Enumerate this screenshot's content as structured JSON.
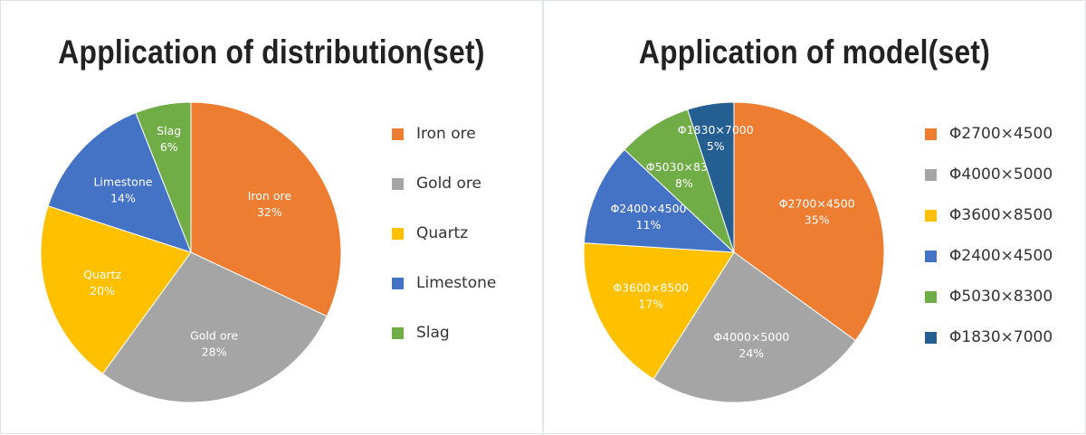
{
  "chart_data": [
    {
      "type": "pie",
      "title": "Application of distribution(set)",
      "categories": [
        "Iron ore",
        "Gold ore",
        "Quartz",
        "Limestone",
        "Slag"
      ],
      "values": [
        32,
        28,
        20,
        14,
        6
      ],
      "value_labels": [
        "32%",
        "28%",
        "20%",
        "14%",
        "6%"
      ],
      "colors": [
        "#ED7D31",
        "#A5A5A5",
        "#FFC000",
        "#4472C4",
        "#70AD47"
      ],
      "legend_position": "right"
    },
    {
      "type": "pie",
      "title": "Application of model(set)",
      "categories": [
        "Φ2700×4500",
        "Φ4000×5000",
        "Φ3600×8500",
        "Φ2400×4500",
        "Φ5030×8300",
        "Φ1830×7000"
      ],
      "values": [
        35,
        24,
        17,
        11,
        8,
        5
      ],
      "value_labels": [
        "35%",
        "24%",
        "17%",
        "11%",
        "8%",
        "5%"
      ],
      "colors": [
        "#ED7D31",
        "#A5A5A5",
        "#FFC000",
        "#4472C4",
        "#70AD47",
        "#255E91"
      ],
      "legend_position": "right"
    }
  ]
}
